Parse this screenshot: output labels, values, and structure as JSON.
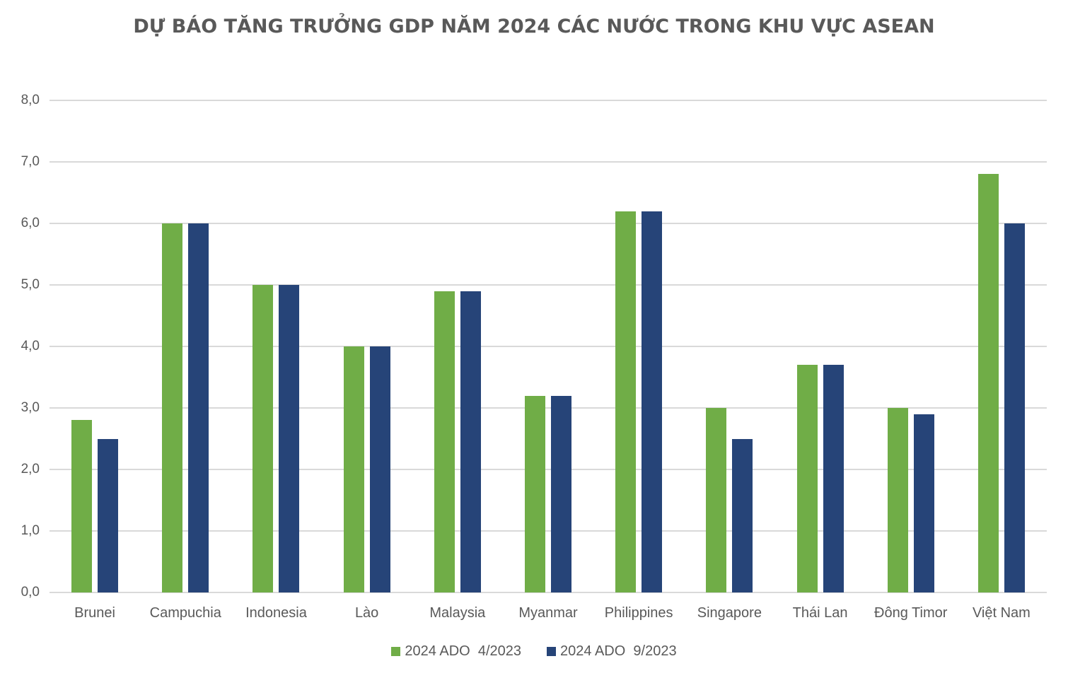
{
  "chart_data": {
    "type": "bar",
    "title": "DỰ BÁO TĂNG TRƯỞNG GDP NĂM 2024 CÁC NƯỚC TRONG KHU VỰC ASEAN",
    "xlabel": "",
    "ylabel": "",
    "ylim": [
      0,
      8
    ],
    "yticks": [
      "0,0",
      "1,0",
      "2,0",
      "3,0",
      "4,0",
      "5,0",
      "6,0",
      "7,0",
      "8,0"
    ],
    "grid": true,
    "legend_position": "bottom",
    "categories": [
      "Brunei",
      "Campuchia",
      "Indonesia",
      "Lào",
      "Malaysia",
      "Myanmar",
      "Philippines",
      "Singapore",
      "Thái Lan",
      "Đông Timor",
      "Việt Nam"
    ],
    "series": [
      {
        "name": "2024 ADO  4/2023",
        "color": "#70ad47",
        "values": [
          2.8,
          6.0,
          5.0,
          4.0,
          4.9,
          3.2,
          6.2,
          3.0,
          3.7,
          3.0,
          6.8
        ]
      },
      {
        "name": "2024 ADO  9/2023",
        "color": "#264478",
        "values": [
          2.5,
          6.0,
          5.0,
          4.0,
          4.9,
          3.2,
          6.2,
          2.5,
          3.7,
          2.9,
          6.0
        ]
      }
    ]
  }
}
